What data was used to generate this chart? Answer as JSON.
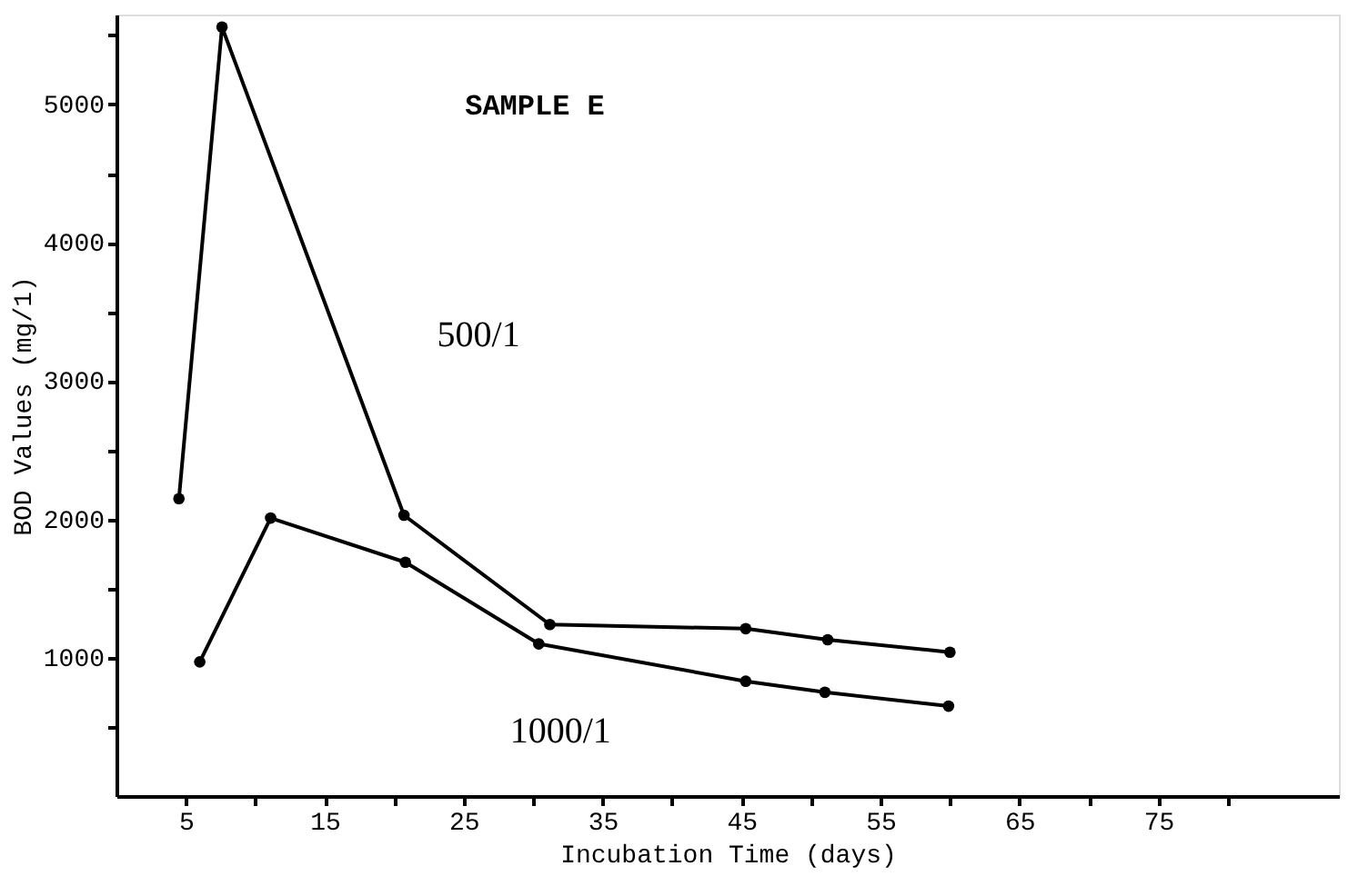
{
  "chart_data": {
    "type": "line",
    "title": "SAMPLE E",
    "xlabel": "Incubation Time (days)",
    "ylabel": "BOD Values (mg/1)",
    "series": [
      {
        "name": "500/1",
        "color": "#000000",
        "x": [
          4.5,
          7.6,
          20.7,
          31.2,
          45.3,
          51.2,
          60
        ],
        "values": [
          2150,
          5560,
          2030,
          1240,
          1210,
          1130,
          1040
        ]
      },
      {
        "name": "1000/1",
        "color": "#000000",
        "x": [
          6.0,
          11.1,
          20.8,
          30.4,
          45.3,
          51,
          59.9
        ],
        "values": [
          970,
          2010,
          1690,
          1100,
          830,
          750,
          650
        ]
      }
    ],
    "xlim": [
      0,
      88
    ],
    "ylim": [
      0,
      5650
    ],
    "xticks": [
      5,
      {
        "value": 10,
        "label": null
      },
      15,
      {
        "value": 20,
        "label": null
      },
      25,
      {
        "value": 30,
        "label": null
      },
      35,
      {
        "value": 40,
        "label": null
      },
      45,
      {
        "value": 50,
        "label": null
      },
      55,
      {
        "value": 60,
        "label": null
      },
      65,
      {
        "value": 70,
        "label": null
      },
      75,
      {
        "value": 80,
        "label": null
      }
    ],
    "yticks": [
      {
        "value": 500,
        "label": null
      },
      1000,
      {
        "value": 1500,
        "label": null
      },
      2000,
      {
        "value": 2500,
        "label": null
      },
      3000,
      {
        "value": 3500,
        "label": null
      },
      4000,
      {
        "value": 4500,
        "label": null
      },
      5000,
      {
        "value": 5500,
        "label": null
      }
    ],
    "marker": "circle",
    "line_style": "solid"
  }
}
